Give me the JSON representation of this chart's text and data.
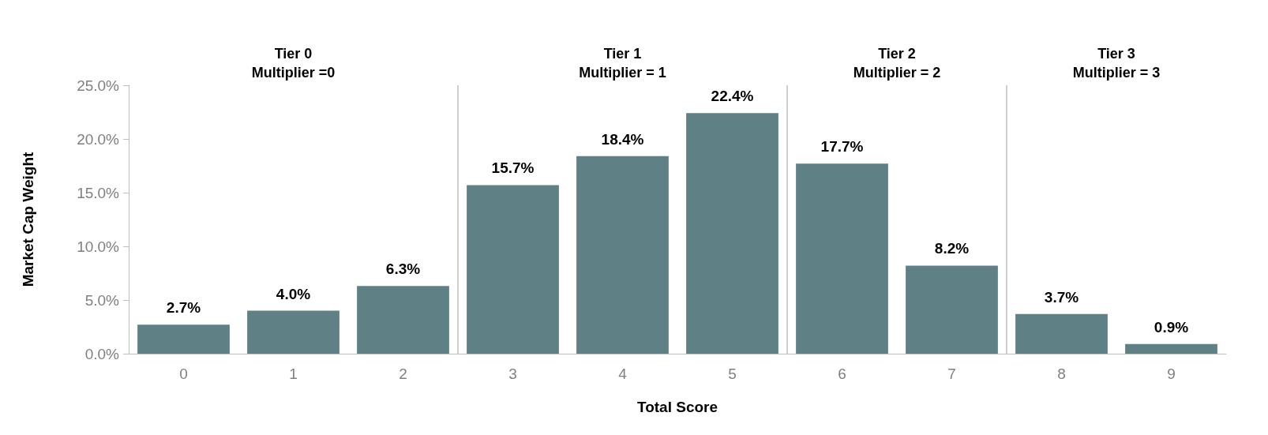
{
  "chart_data": {
    "type": "bar",
    "xlabel": "Total Score",
    "ylabel": "Market Cap Weight",
    "x": [
      0,
      1,
      2,
      3,
      4,
      5,
      6,
      7,
      8,
      9
    ],
    "values": [
      2.7,
      4.0,
      6.3,
      15.7,
      18.4,
      22.4,
      17.7,
      8.2,
      3.7,
      0.9
    ],
    "value_labels": [
      "2.7%",
      "4.0%",
      "6.3%",
      "15.7%",
      "18.4%",
      "22.4%",
      "17.7%",
      "8.2%",
      "3.7%",
      "0.9%"
    ],
    "color": "#5f8185",
    "xlim": [
      -0.5,
      9.5
    ],
    "xticks": [
      0,
      1,
      2,
      3,
      4,
      5,
      6,
      7,
      8,
      9
    ],
    "ylim": [
      0,
      25
    ],
    "yticks": [
      {
        "value": 0,
        "label": "0.0%"
      },
      {
        "value": 5,
        "label": "5.0%"
      },
      {
        "value": 10,
        "label": "10.0%"
      },
      {
        "value": 15,
        "label": "15.0%"
      },
      {
        "value": 20,
        "label": "20.0%"
      },
      {
        "value": 25,
        "label": "25.0%"
      }
    ],
    "ref_lines": [
      {
        "axis": "x",
        "value": 2.5,
        "color": "#d0d0d0"
      },
      {
        "axis": "x",
        "value": 5.5,
        "color": "#d0d0d0"
      },
      {
        "axis": "x",
        "value": 7.5,
        "color": "#d0d0d0"
      }
    ],
    "annotations": [
      "Tier 0\nMultiplier =0",
      "Tier 1\nMultiplier = 1",
      "Tier 2\nMultiplier = 2",
      "Tier 3\nMultiplier = 3"
    ],
    "grid": false
  }
}
